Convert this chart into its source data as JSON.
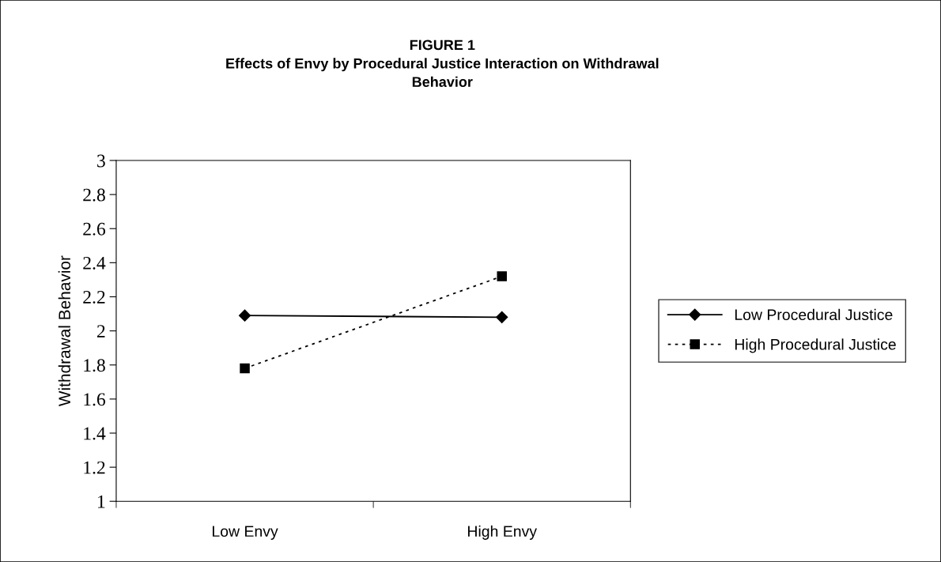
{
  "chart_data": {
    "type": "line",
    "title": "FIGURE 1\nEffects of Envy by Procedural Justice Interaction on Withdrawal\nBehavior",
    "ylabel": "Withdrawal Behavior",
    "categories": [
      "Low Envy",
      "High Envy"
    ],
    "series": [
      {
        "name": "Low Procedural Justice",
        "color": "#000000",
        "values": [
          2.09,
          2.08
        ],
        "marker": "diamond",
        "line_style": "solid"
      },
      {
        "name": "High Procedural Justice",
        "color": "#000000",
        "values": [
          1.78,
          2.32
        ],
        "marker": "square",
        "line_style": "dotted"
      }
    ],
    "ylim": [
      1,
      3
    ],
    "yticks": [
      1,
      1.2,
      1.4,
      1.6,
      1.8,
      2,
      2.2,
      2.4,
      2.6,
      2.8,
      3
    ],
    "grid": false,
    "legend": "right"
  }
}
